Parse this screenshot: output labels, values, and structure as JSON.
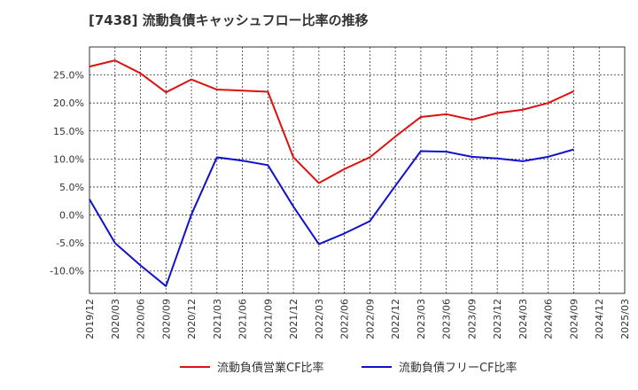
{
  "chart_data": {
    "type": "line",
    "title": "[7438]  流動負債キャッシュフロー比率の推移",
    "xlabel": "",
    "ylabel": "",
    "ylim": [
      -14,
      30
    ],
    "yticks": [
      -10,
      -5,
      0,
      5,
      10,
      15,
      20,
      25
    ],
    "ytick_labels": [
      "-10.0%",
      "-5.0%",
      "0.0%",
      "5.0%",
      "10.0%",
      "15.0%",
      "20.0%",
      "25.0%"
    ],
    "grid": true,
    "legend_position": "bottom",
    "categories": [
      "2019/12",
      "2020/03",
      "2020/06",
      "2020/09",
      "2020/12",
      "2021/03",
      "2021/06",
      "2021/09",
      "2021/12",
      "2022/03",
      "2022/06",
      "2022/09",
      "2022/12",
      "2023/03",
      "2023/06",
      "2023/09",
      "2023/12",
      "2024/03",
      "2024/06",
      "2024/09",
      "2024/12",
      "2025/03"
    ],
    "series": [
      {
        "name": "流動負債営業CF比率",
        "color": "#dd1111",
        "values": [
          26.5,
          27.6,
          25.3,
          21.9,
          24.2,
          22.4,
          22.2,
          22.0,
          10.3,
          5.7,
          8.2,
          10.3,
          14.0,
          17.5,
          18.0,
          17.0,
          18.2,
          18.8,
          20.0,
          22.1,
          null,
          null
        ]
      },
      {
        "name": "流動負債フリーCF比率",
        "color": "#1111cc",
        "values": [
          2.8,
          -5.0,
          -9.0,
          -12.7,
          0.1,
          10.3,
          9.7,
          8.9,
          1.5,
          -5.2,
          -3.3,
          -1.1,
          5.2,
          11.4,
          11.3,
          10.4,
          10.1,
          9.6,
          10.4,
          11.7,
          null,
          null
        ]
      }
    ]
  }
}
